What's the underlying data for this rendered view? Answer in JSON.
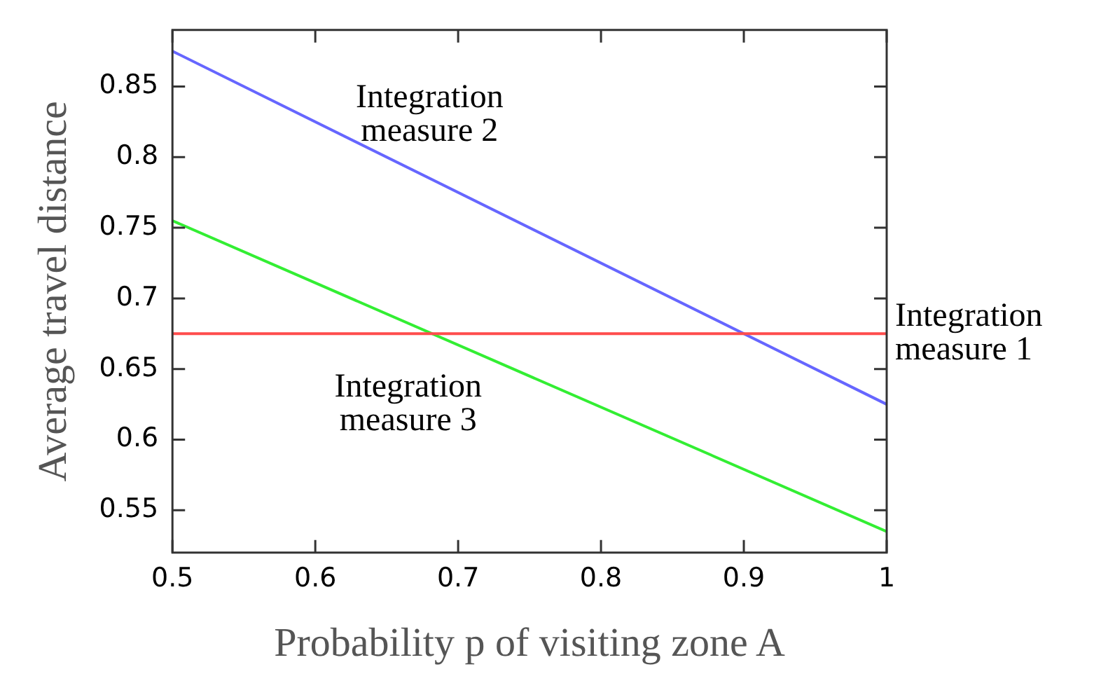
{
  "chart_data": {
    "type": "line",
    "xlabel": "Probability p of visiting zone A",
    "ylabel": "Average travel distance",
    "x": [
      0.5,
      1
    ],
    "series": [
      {
        "name": "Integration measure 1",
        "color": "#ff4d4d",
        "values": [
          0.675,
          0.675
        ]
      },
      {
        "name": "Integration measure 2",
        "color": "#6666ff",
        "values": [
          0.875,
          0.625
        ]
      },
      {
        "name": "Integration measure 3",
        "color": "#33ee33",
        "values": [
          0.755,
          0.535
        ]
      }
    ],
    "xlim": [
      0.5,
      1
    ],
    "xticks": [
      0.5,
      0.6,
      0.7,
      0.8,
      0.9,
      1
    ],
    "ylim": [
      0.52,
      0.89
    ],
    "yticks": [
      0.55,
      0.6,
      0.65,
      0.7,
      0.75,
      0.8,
      0.85
    ],
    "grid": false,
    "legend": false,
    "marker": "none",
    "line_style": "solid"
  }
}
